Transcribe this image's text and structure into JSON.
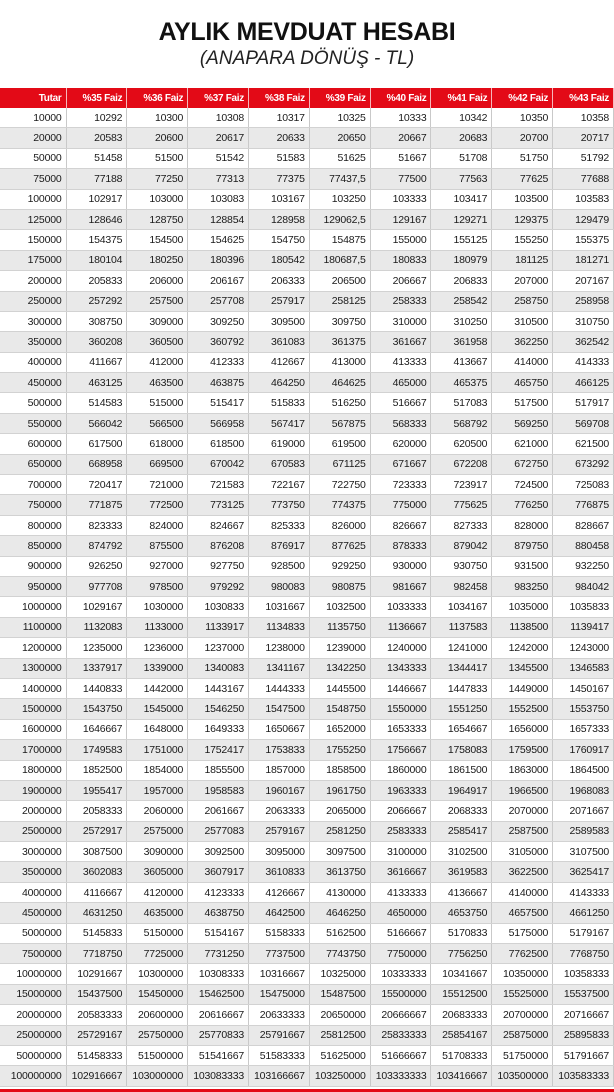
{
  "header": {
    "title": "AYLIK MEVDUAT HESABI",
    "subtitle": "(ANAPARA DÖNÜŞ - TL)"
  },
  "colors": {
    "accent": "#e30a17",
    "row_alt": "#e9e9e9"
  },
  "table": {
    "columns": [
      "Tutar",
      "%35 Faiz",
      "%36 Faiz",
      "%37 Faiz",
      "%38 Faiz",
      "%39 Faiz",
      "%40 Faiz",
      "%41 Faiz",
      "%42 Faiz",
      "%43 Faiz"
    ],
    "rows": [
      [
        "10000",
        "10292",
        "10300",
        "10308",
        "10317",
        "10325",
        "10333",
        "10342",
        "10350",
        "10358"
      ],
      [
        "20000",
        "20583",
        "20600",
        "20617",
        "20633",
        "20650",
        "20667",
        "20683",
        "20700",
        "20717"
      ],
      [
        "50000",
        "51458",
        "51500",
        "51542",
        "51583",
        "51625",
        "51667",
        "51708",
        "51750",
        "51792"
      ],
      [
        "75000",
        "77188",
        "77250",
        "77313",
        "77375",
        "77437,5",
        "77500",
        "77563",
        "77625",
        "77688"
      ],
      [
        "100000",
        "102917",
        "103000",
        "103083",
        "103167",
        "103250",
        "103333",
        "103417",
        "103500",
        "103583"
      ],
      [
        "125000",
        "128646",
        "128750",
        "128854",
        "128958",
        "129062,5",
        "129167",
        "129271",
        "129375",
        "129479"
      ],
      [
        "150000",
        "154375",
        "154500",
        "154625",
        "154750",
        "154875",
        "155000",
        "155125",
        "155250",
        "155375"
      ],
      [
        "175000",
        "180104",
        "180250",
        "180396",
        "180542",
        "180687,5",
        "180833",
        "180979",
        "181125",
        "181271"
      ],
      [
        "200000",
        "205833",
        "206000",
        "206167",
        "206333",
        "206500",
        "206667",
        "206833",
        "207000",
        "207167"
      ],
      [
        "250000",
        "257292",
        "257500",
        "257708",
        "257917",
        "258125",
        "258333",
        "258542",
        "258750",
        "258958"
      ],
      [
        "300000",
        "308750",
        "309000",
        "309250",
        "309500",
        "309750",
        "310000",
        "310250",
        "310500",
        "310750"
      ],
      [
        "350000",
        "360208",
        "360500",
        "360792",
        "361083",
        "361375",
        "361667",
        "361958",
        "362250",
        "362542"
      ],
      [
        "400000",
        "411667",
        "412000",
        "412333",
        "412667",
        "413000",
        "413333",
        "413667",
        "414000",
        "414333"
      ],
      [
        "450000",
        "463125",
        "463500",
        "463875",
        "464250",
        "464625",
        "465000",
        "465375",
        "465750",
        "466125"
      ],
      [
        "500000",
        "514583",
        "515000",
        "515417",
        "515833",
        "516250",
        "516667",
        "517083",
        "517500",
        "517917"
      ],
      [
        "550000",
        "566042",
        "566500",
        "566958",
        "567417",
        "567875",
        "568333",
        "568792",
        "569250",
        "569708"
      ],
      [
        "600000",
        "617500",
        "618000",
        "618500",
        "619000",
        "619500",
        "620000",
        "620500",
        "621000",
        "621500"
      ],
      [
        "650000",
        "668958",
        "669500",
        "670042",
        "670583",
        "671125",
        "671667",
        "672208",
        "672750",
        "673292"
      ],
      [
        "700000",
        "720417",
        "721000",
        "721583",
        "722167",
        "722750",
        "723333",
        "723917",
        "724500",
        "725083"
      ],
      [
        "750000",
        "771875",
        "772500",
        "773125",
        "773750",
        "774375",
        "775000",
        "775625",
        "776250",
        "776875"
      ],
      [
        "800000",
        "823333",
        "824000",
        "824667",
        "825333",
        "826000",
        "826667",
        "827333",
        "828000",
        "828667"
      ],
      [
        "850000",
        "874792",
        "875500",
        "876208",
        "876917",
        "877625",
        "878333",
        "879042",
        "879750",
        "880458"
      ],
      [
        "900000",
        "926250",
        "927000",
        "927750",
        "928500",
        "929250",
        "930000",
        "930750",
        "931500",
        "932250"
      ],
      [
        "950000",
        "977708",
        "978500",
        "979292",
        "980083",
        "980875",
        "981667",
        "982458",
        "983250",
        "984042"
      ],
      [
        "1000000",
        "1029167",
        "1030000",
        "1030833",
        "1031667",
        "1032500",
        "1033333",
        "1034167",
        "1035000",
        "1035833"
      ],
      [
        "1100000",
        "1132083",
        "1133000",
        "1133917",
        "1134833",
        "1135750",
        "1136667",
        "1137583",
        "1138500",
        "1139417"
      ],
      [
        "1200000",
        "1235000",
        "1236000",
        "1237000",
        "1238000",
        "1239000",
        "1240000",
        "1241000",
        "1242000",
        "1243000"
      ],
      [
        "1300000",
        "1337917",
        "1339000",
        "1340083",
        "1341167",
        "1342250",
        "1343333",
        "1344417",
        "1345500",
        "1346583"
      ],
      [
        "1400000",
        "1440833",
        "1442000",
        "1443167",
        "1444333",
        "1445500",
        "1446667",
        "1447833",
        "1449000",
        "1450167"
      ],
      [
        "1500000",
        "1543750",
        "1545000",
        "1546250",
        "1547500",
        "1548750",
        "1550000",
        "1551250",
        "1552500",
        "1553750"
      ],
      [
        "1600000",
        "1646667",
        "1648000",
        "1649333",
        "1650667",
        "1652000",
        "1653333",
        "1654667",
        "1656000",
        "1657333"
      ],
      [
        "1700000",
        "1749583",
        "1751000",
        "1752417",
        "1753833",
        "1755250",
        "1756667",
        "1758083",
        "1759500",
        "1760917"
      ],
      [
        "1800000",
        "1852500",
        "1854000",
        "1855500",
        "1857000",
        "1858500",
        "1860000",
        "1861500",
        "1863000",
        "1864500"
      ],
      [
        "1900000",
        "1955417",
        "1957000",
        "1958583",
        "1960167",
        "1961750",
        "1963333",
        "1964917",
        "1966500",
        "1968083"
      ],
      [
        "2000000",
        "2058333",
        "2060000",
        "2061667",
        "2063333",
        "2065000",
        "2066667",
        "2068333",
        "2070000",
        "2071667"
      ],
      [
        "2500000",
        "2572917",
        "2575000",
        "2577083",
        "2579167",
        "2581250",
        "2583333",
        "2585417",
        "2587500",
        "2589583"
      ],
      [
        "3000000",
        "3087500",
        "3090000",
        "3092500",
        "3095000",
        "3097500",
        "3100000",
        "3102500",
        "3105000",
        "3107500"
      ],
      [
        "3500000",
        "3602083",
        "3605000",
        "3607917",
        "3610833",
        "3613750",
        "3616667",
        "3619583",
        "3622500",
        "3625417"
      ],
      [
        "4000000",
        "4116667",
        "4120000",
        "4123333",
        "4126667",
        "4130000",
        "4133333",
        "4136667",
        "4140000",
        "4143333"
      ],
      [
        "4500000",
        "4631250",
        "4635000",
        "4638750",
        "4642500",
        "4646250",
        "4650000",
        "4653750",
        "4657500",
        "4661250"
      ],
      [
        "5000000",
        "5145833",
        "5150000",
        "5154167",
        "5158333",
        "5162500",
        "5166667",
        "5170833",
        "5175000",
        "5179167"
      ],
      [
        "7500000",
        "7718750",
        "7725000",
        "7731250",
        "7737500",
        "7743750",
        "7750000",
        "7756250",
        "7762500",
        "7768750"
      ],
      [
        "10000000",
        "10291667",
        "10300000",
        "10308333",
        "10316667",
        "10325000",
        "10333333",
        "10341667",
        "10350000",
        "10358333"
      ],
      [
        "15000000",
        "15437500",
        "15450000",
        "15462500",
        "15475000",
        "15487500",
        "15500000",
        "15512500",
        "15525000",
        "15537500"
      ],
      [
        "20000000",
        "20583333",
        "20600000",
        "20616667",
        "20633333",
        "20650000",
        "20666667",
        "20683333",
        "20700000",
        "20716667"
      ],
      [
        "25000000",
        "25729167",
        "25750000",
        "25770833",
        "25791667",
        "25812500",
        "25833333",
        "25854167",
        "25875000",
        "25895833"
      ],
      [
        "50000000",
        "51458333",
        "51500000",
        "51541667",
        "51583333",
        "51625000",
        "51666667",
        "51708333",
        "51750000",
        "51791667"
      ],
      [
        "100000000",
        "102916667",
        "103000000",
        "103083333",
        "103166667",
        "103250000",
        "103333333",
        "103416667",
        "103500000",
        "103583333"
      ]
    ]
  }
}
